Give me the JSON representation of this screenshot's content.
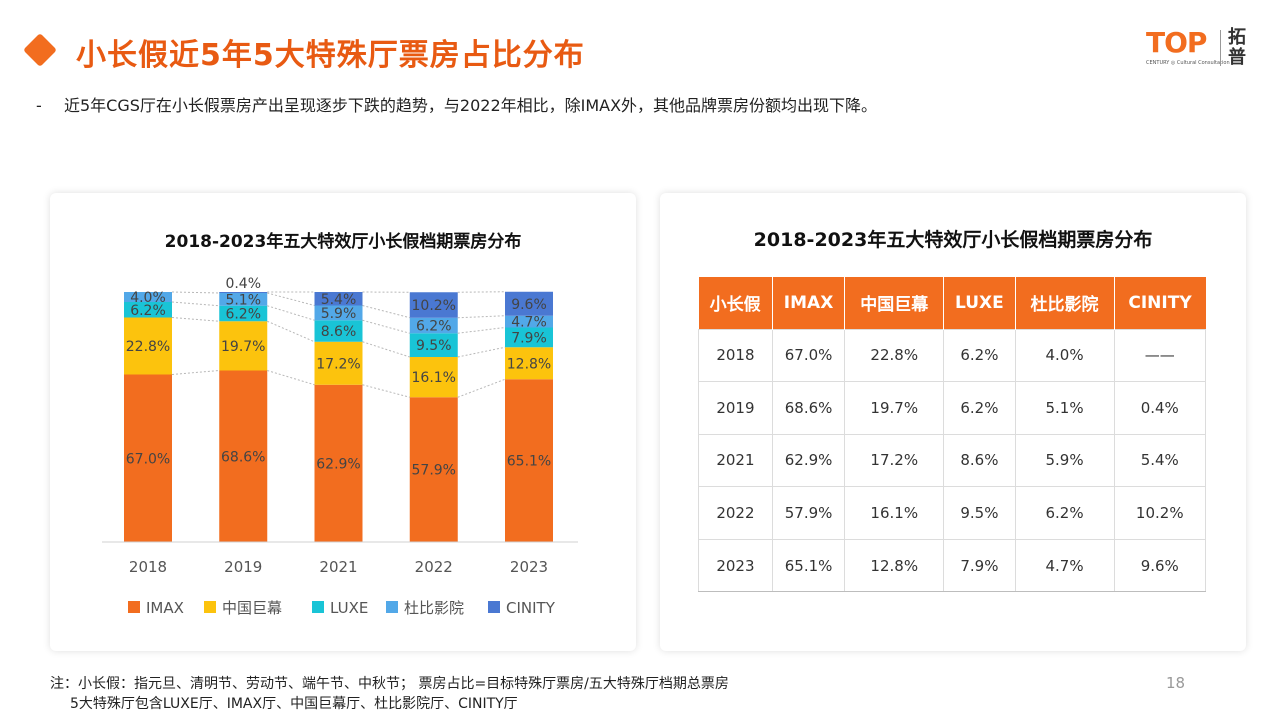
{
  "header": {
    "title": "小长假近5年5大特殊厅票房占比分布",
    "bullet_mark": "-",
    "bullet": "近5年CGS厅在小长假票房产出呈现逐步下跌的趋势，与2022年相比，除IMAX外，其他品牌票房份额均出现下降。"
  },
  "logo": {
    "mark": "TOP",
    "sub": "CENTURY ◎ Cultural Consultation",
    "cn_1": "拓",
    "cn_2": "普"
  },
  "chart_data": {
    "type": "bar",
    "stacked": true,
    "title": "2018-2023年五大特效厅小长假档期票房分布",
    "categories": [
      "2018",
      "2019",
      "2021",
      "2022",
      "2023"
    ],
    "series": [
      {
        "name": "IMAX",
        "color": "#f26d1f",
        "values": [
          67.0,
          68.6,
          62.9,
          57.9,
          65.1
        ]
      },
      {
        "name": "中国巨幕",
        "color": "#fcc30d",
        "values": [
          22.8,
          19.7,
          17.2,
          16.1,
          12.8
        ]
      },
      {
        "name": "LUXE",
        "color": "#19c4d6",
        "values": [
          6.2,
          6.2,
          8.6,
          9.5,
          7.9
        ]
      },
      {
        "name": "杜比影院",
        "color": "#52a8e8",
        "values": [
          4.0,
          5.1,
          5.9,
          6.2,
          4.7
        ]
      },
      {
        "name": "CINITY",
        "color": "#4a78d2",
        "values": [
          null,
          0.4,
          5.4,
          10.2,
          9.6
        ]
      }
    ],
    "ylim": [
      0,
      100
    ],
    "legend_position": "bottom",
    "grid": false
  },
  "table": {
    "title": "2018-2023年五大特效厅小长假档期票房分布",
    "headers": [
      "小长假",
      "IMAX",
      "中国巨幕",
      "LUXE",
      "杜比影院",
      "CINITY"
    ],
    "rows": [
      [
        "2018",
        "67.0%",
        "22.8%",
        "6.2%",
        "4.0%",
        "——"
      ],
      [
        "2019",
        "68.6%",
        "19.7%",
        "6.2%",
        "5.1%",
        "0.4%"
      ],
      [
        "2021",
        "62.9%",
        "17.2%",
        "8.6%",
        "5.9%",
        "5.4%"
      ],
      [
        "2022",
        "57.9%",
        "16.1%",
        "9.5%",
        "6.2%",
        "10.2%"
      ],
      [
        "2023",
        "65.1%",
        "12.8%",
        "7.9%",
        "4.7%",
        "9.6%"
      ]
    ]
  },
  "footer": {
    "note_line1": "注：小长假：指元旦、清明节、劳动节、端午节、中秋节； 票房占比=目标特殊厅票房/五大特殊厅档期总票房",
    "note_line2": "5大特殊厅包含LUXE厅、IMAX厅、中国巨幕厅、杜比影院厅、CINITY厅",
    "page_number": "18"
  },
  "colors": {
    "accent": "#f26d1f",
    "title": "#e85a12"
  }
}
